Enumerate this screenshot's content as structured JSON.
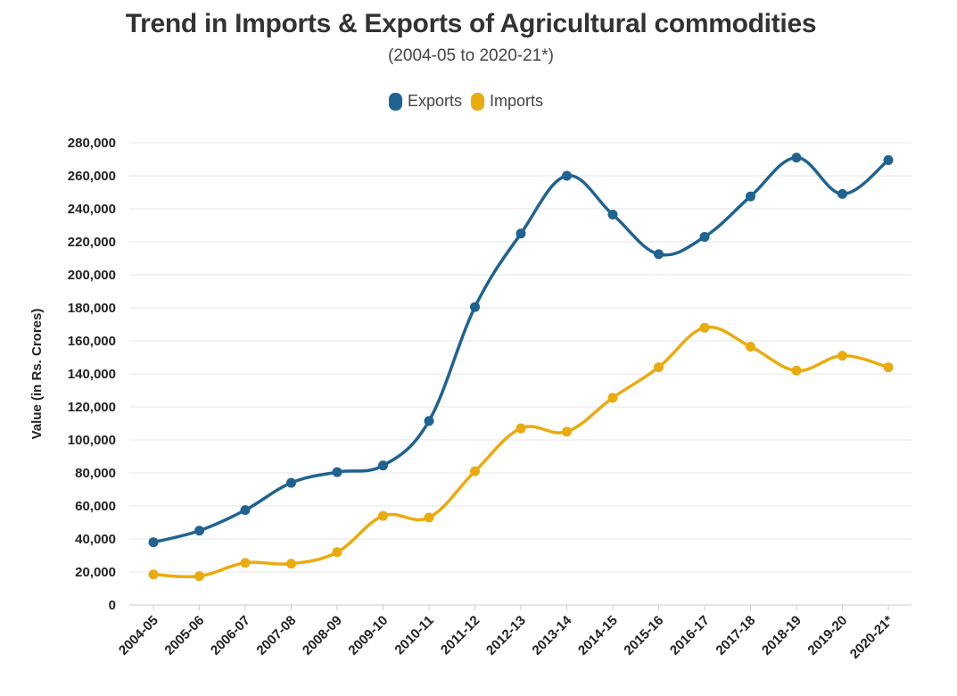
{
  "chart_data": {
    "type": "line",
    "title": "Trend in Imports & Exports of Agricultural commodities",
    "subtitle": "(2004-05 to 2020-21*)",
    "xlabel": "",
    "ylabel": "Value (in Rs. Crores)",
    "ylim": [
      0,
      280000
    ],
    "yticks": [
      0,
      20000,
      40000,
      60000,
      80000,
      100000,
      120000,
      140000,
      160000,
      180000,
      200000,
      220000,
      240000,
      260000,
      280000
    ],
    "ytick_labels": [
      "0",
      "20,000",
      "40,000",
      "60,000",
      "80,000",
      "100,000",
      "120,000",
      "140,000",
      "160,000",
      "180,000",
      "200,000",
      "220,000",
      "240,000",
      "260,000",
      "280,000"
    ],
    "grid": true,
    "legend_position": "top-center",
    "categories": [
      "2004-05",
      "2005-06",
      "2006-07",
      "2007-08",
      "2008-09",
      "2009-10",
      "2010-11",
      "2011-12",
      "2012-13",
      "2013-14",
      "2014-15",
      "2015-16",
      "2016-17",
      "2017-18",
      "2018-19",
      "2019-20",
      "2020-21*"
    ],
    "series": [
      {
        "name": "Exports",
        "color": "#1f6391",
        "values": [
          38000,
          45000,
          57500,
          74000,
          80500,
          84500,
          111500,
          180500,
          225000,
          260000,
          236500,
          212500,
          223000,
          247500,
          271000,
          249000,
          269500
        ]
      },
      {
        "name": "Imports",
        "color": "#eaab0e",
        "values": [
          18500,
          17500,
          25500,
          25000,
          32000,
          54000,
          53000,
          81000,
          107000,
          105000,
          125500,
          144000,
          168000,
          156500,
          142000,
          151000,
          144000
        ]
      }
    ]
  }
}
